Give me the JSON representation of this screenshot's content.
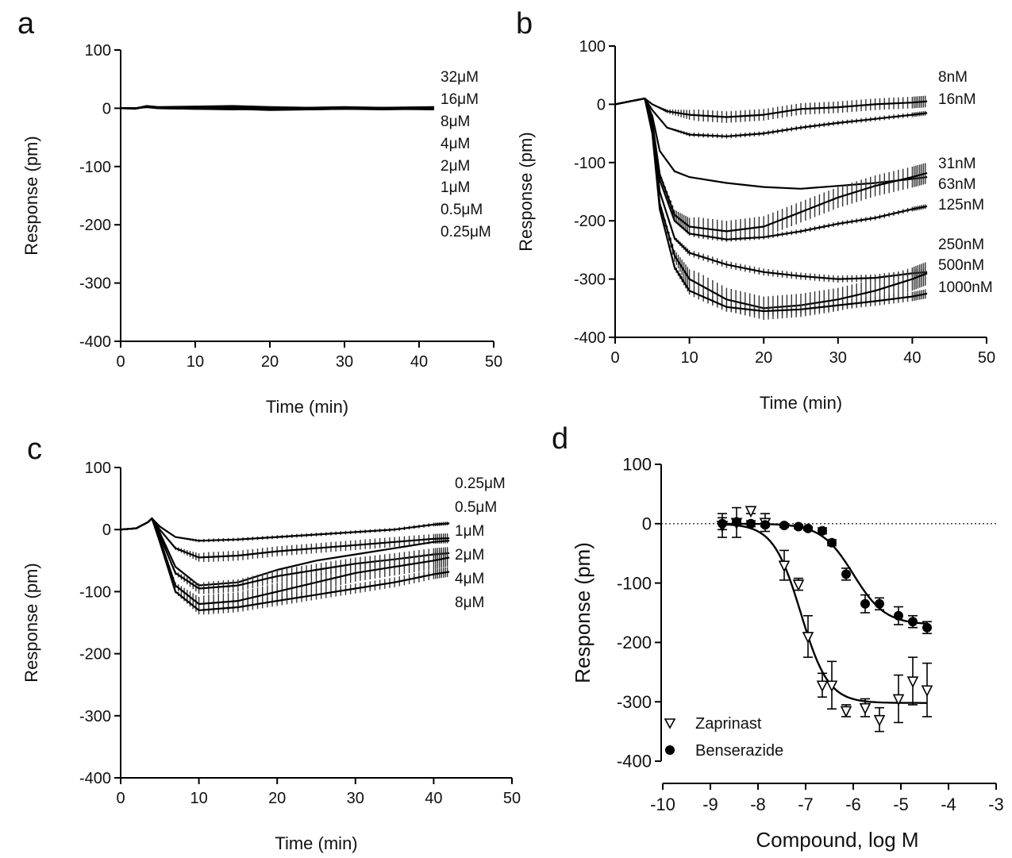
{
  "figure": {
    "panels": [
      {
        "letter": "a"
      },
      {
        "letter": "b"
      },
      {
        "letter": "c"
      },
      {
        "letter": "d"
      }
    ]
  },
  "chart_data": [
    {
      "panel": "a",
      "type": "line",
      "title": "",
      "xlabel": "Time (min)",
      "ylabel": "Response (pm)",
      "xlim": [
        0,
        50
      ],
      "ylim": [
        -400,
        100
      ],
      "xticks": [
        "0",
        "10",
        "20",
        "30",
        "40",
        "50"
      ],
      "yticks": [
        "100",
        "0",
        "-100",
        "-200",
        "-300",
        "-400"
      ],
      "grid": false,
      "legend_labels": [
        "32μM",
        "16μM",
        "8μM",
        "4μM",
        "2μM",
        "1μM",
        "0.5μM",
        "0.25μM"
      ],
      "series": [
        {
          "name": "32μM",
          "x": [
            0,
            2,
            3.5,
            5,
            10,
            15,
            20,
            25,
            30,
            35,
            42
          ],
          "y": [
            0,
            0,
            4,
            2,
            3,
            4,
            2,
            1,
            2,
            1,
            2
          ]
        },
        {
          "name": "16μM",
          "x": [
            0,
            2,
            3.5,
            5,
            10,
            15,
            20,
            25,
            30,
            35,
            42
          ],
          "y": [
            0,
            -1,
            3,
            1,
            1,
            3,
            1,
            0,
            1,
            0,
            0
          ]
        },
        {
          "name": "8μM",
          "x": [
            0,
            2,
            3.5,
            5,
            10,
            15,
            20,
            25,
            30,
            35,
            42
          ],
          "y": [
            0,
            0,
            2,
            0,
            -1,
            0,
            -2,
            -1,
            0,
            -1,
            -1
          ]
        },
        {
          "name": "4μM",
          "x": [
            0,
            2,
            3.5,
            5,
            10,
            15,
            20,
            25,
            30,
            35,
            42
          ],
          "y": [
            0,
            0,
            3,
            1,
            0,
            -1,
            -3,
            -2,
            -1,
            -2,
            -1
          ]
        },
        {
          "name": "2μM",
          "x": [
            0,
            2,
            3.5,
            5,
            10,
            15,
            20,
            25,
            30,
            35,
            42
          ],
          "y": [
            0,
            0,
            2,
            1,
            2,
            1,
            0,
            0,
            1,
            0,
            1
          ]
        },
        {
          "name": "1μM",
          "x": [
            0,
            2,
            3.5,
            5,
            10,
            15,
            20,
            25,
            30,
            35,
            42
          ],
          "y": [
            0,
            0,
            3,
            1,
            1,
            2,
            1,
            1,
            0,
            1,
            0
          ]
        },
        {
          "name": "0.5μM",
          "x": [
            0,
            2,
            3.5,
            5,
            10,
            15,
            20,
            25,
            30,
            35,
            42
          ],
          "y": [
            0,
            0,
            2,
            0,
            -1,
            -2,
            -1,
            -2,
            -1,
            -1,
            -2
          ]
        },
        {
          "name": "0.25μM",
          "x": [
            0,
            2,
            3.5,
            5,
            10,
            15,
            20,
            25,
            30,
            35,
            42
          ],
          "y": [
            0,
            0,
            3,
            1,
            0,
            0,
            -1,
            0,
            0,
            -1,
            0
          ]
        }
      ]
    },
    {
      "panel": "b",
      "type": "line",
      "title": "",
      "xlabel": "Time (min)",
      "ylabel": "Response (pm)",
      "xlim": [
        0,
        50
      ],
      "ylim": [
        -400,
        100
      ],
      "xticks": [
        "0",
        "10",
        "20",
        "30",
        "40",
        "50"
      ],
      "yticks": [
        "100",
        "0",
        "-100",
        "-200",
        "-300",
        "-400"
      ],
      "grid": false,
      "legend_labels": [
        "8nM",
        "16nM",
        "31nM",
        "63nM",
        "125nM",
        "250nM",
        "500nM",
        "1000nM"
      ],
      "series": [
        {
          "name": "8nM",
          "x": [
            0,
            2,
            4,
            5,
            7,
            10,
            15,
            20,
            25,
            30,
            35,
            40,
            42
          ],
          "y": [
            0,
            5,
            10,
            0,
            -12,
            -18,
            -22,
            -18,
            -8,
            -5,
            0,
            3,
            5
          ]
        },
        {
          "name": "16nM",
          "x": [
            0,
            2,
            4,
            5,
            7,
            10,
            15,
            20,
            25,
            30,
            35,
            40,
            42
          ],
          "y": [
            0,
            5,
            10,
            -10,
            -40,
            -52,
            -55,
            -50,
            -40,
            -32,
            -25,
            -18,
            -15
          ]
        },
        {
          "name": "31nM",
          "x": [
            0,
            2,
            4,
            5,
            6,
            8,
            10,
            15,
            20,
            25,
            30,
            35,
            40,
            42
          ],
          "y": [
            0,
            5,
            10,
            -20,
            -80,
            -115,
            -125,
            -135,
            -142,
            -145,
            -140,
            -135,
            -128,
            -125
          ]
        },
        {
          "name": "63nM",
          "x": [
            0,
            2,
            4,
            5,
            6,
            8,
            10,
            15,
            20,
            25,
            30,
            35,
            40,
            42
          ],
          "y": [
            0,
            5,
            10,
            -30,
            -120,
            -190,
            -210,
            -218,
            -210,
            -185,
            -160,
            -140,
            -125,
            -118
          ]
        },
        {
          "name": "125nM",
          "x": [
            0,
            2,
            4,
            5,
            6,
            8,
            10,
            15,
            20,
            25,
            30,
            35,
            40,
            42
          ],
          "y": [
            0,
            5,
            10,
            -30,
            -130,
            -200,
            -222,
            -232,
            -228,
            -218,
            -205,
            -195,
            -180,
            -175
          ]
        },
        {
          "name": "250nM",
          "x": [
            0,
            2,
            4,
            5,
            6,
            8,
            10,
            15,
            20,
            25,
            30,
            35,
            40,
            42
          ],
          "y": [
            0,
            5,
            10,
            -40,
            -150,
            -230,
            -255,
            -275,
            -288,
            -295,
            -300,
            -298,
            -290,
            -288
          ]
        },
        {
          "name": "500nM",
          "x": [
            0,
            2,
            4,
            5,
            6,
            8,
            10,
            15,
            20,
            25,
            30,
            35,
            40,
            42
          ],
          "y": [
            0,
            5,
            10,
            -45,
            -170,
            -260,
            -300,
            -335,
            -350,
            -345,
            -335,
            -320,
            -300,
            -290
          ]
        },
        {
          "name": "1000nM",
          "x": [
            0,
            2,
            4,
            5,
            6,
            8,
            10,
            15,
            20,
            25,
            30,
            35,
            40,
            42
          ],
          "y": [
            0,
            5,
            10,
            -50,
            -180,
            -280,
            -320,
            -348,
            -355,
            -352,
            -345,
            -338,
            -330,
            -325
          ]
        }
      ]
    },
    {
      "panel": "c",
      "type": "line",
      "title": "",
      "xlabel": "Time (min)",
      "ylabel": "Response (pm)",
      "xlim": [
        0,
        50
      ],
      "ylim": [
        -400,
        100
      ],
      "xticks": [
        "0",
        "10",
        "20",
        "30",
        "40",
        "50"
      ],
      "yticks": [
        "100",
        "0",
        "-100",
        "-200",
        "-300",
        "-400"
      ],
      "grid": false,
      "legend_labels": [
        "0.25μM",
        "0.5μM",
        "1μM",
        "2μM",
        "4μM",
        "8μM"
      ],
      "series": [
        {
          "name": "0.25μM",
          "x": [
            0,
            2,
            3.5,
            4,
            5,
            7,
            10,
            15,
            20,
            25,
            30,
            35,
            40,
            42
          ],
          "y": [
            0,
            2,
            12,
            18,
            5,
            -12,
            -18,
            -16,
            -12,
            -8,
            -4,
            0,
            8,
            10
          ]
        },
        {
          "name": "0.5μM",
          "x": [
            0,
            2,
            3.5,
            4,
            5,
            7,
            10,
            15,
            20,
            25,
            30,
            35,
            40,
            42
          ],
          "y": [
            0,
            2,
            12,
            18,
            0,
            -30,
            -45,
            -42,
            -35,
            -30,
            -25,
            -20,
            -15,
            -14
          ]
        },
        {
          "name": "1μM",
          "x": [
            0,
            2,
            3.5,
            4,
            5,
            7,
            10,
            15,
            20,
            25,
            30,
            35,
            40,
            42
          ],
          "y": [
            0,
            2,
            12,
            18,
            -5,
            -60,
            -90,
            -85,
            -65,
            -50,
            -40,
            -30,
            -20,
            -18
          ]
        },
        {
          "name": "2μM",
          "x": [
            0,
            2,
            3.5,
            4,
            5,
            7,
            10,
            15,
            20,
            25,
            30,
            35,
            40,
            42
          ],
          "y": [
            0,
            2,
            12,
            18,
            -10,
            -70,
            -95,
            -90,
            -75,
            -65,
            -55,
            -48,
            -40,
            -38
          ]
        },
        {
          "name": "4μM",
          "x": [
            0,
            2,
            3.5,
            4,
            5,
            7,
            10,
            15,
            20,
            25,
            30,
            35,
            40,
            42
          ],
          "y": [
            0,
            2,
            12,
            18,
            -15,
            -90,
            -120,
            -115,
            -100,
            -85,
            -70,
            -60,
            -50,
            -45
          ]
        },
        {
          "name": "8μM",
          "x": [
            0,
            2,
            3.5,
            4,
            5,
            7,
            10,
            15,
            20,
            25,
            30,
            35,
            40,
            42
          ],
          "y": [
            0,
            2,
            12,
            18,
            -20,
            -100,
            -130,
            -125,
            -115,
            -105,
            -95,
            -85,
            -72,
            -68
          ]
        }
      ]
    },
    {
      "panel": "d",
      "type": "scatter",
      "title": "",
      "xlabel": "Compound, log M",
      "ylabel": "Response (pm)",
      "xlim": [
        -10,
        -3
      ],
      "ylim": [
        -400,
        100
      ],
      "xticks": [
        "-10",
        "-9",
        "-8",
        "-7",
        "-6",
        "-5",
        "-4",
        "-3"
      ],
      "yticks": [
        "100",
        "0",
        "-100",
        "-200",
        "-300",
        "-400"
      ],
      "grid": false,
      "legend": "bottom-left",
      "series": [
        {
          "name": "Zaprinast",
          "marker": "open-triangle-down",
          "x": [
            -8.75,
            -8.45,
            -8.15,
            -7.85,
            -7.45,
            -7.15,
            -6.95,
            -6.65,
            -6.45,
            -6.15,
            -5.75,
            -5.45,
            -5.05,
            -4.75,
            -4.45
          ],
          "y": [
            -3,
            2,
            22,
            2,
            -70,
            -102,
            -190,
            -272,
            -272,
            -315,
            -310,
            -330,
            -295,
            -265,
            -280
          ],
          "err": [
            20,
            25,
            5,
            15,
            25,
            10,
            35,
            20,
            40,
            10,
            15,
            20,
            40,
            40,
            45
          ],
          "fit": {
            "bottom": -302,
            "top": 0,
            "logEC50": -7.1,
            "hill": 1.5
          }
        },
        {
          "name": "Benserazide",
          "marker": "filled-circle",
          "x": [
            -8.75,
            -8.45,
            -8.15,
            -7.85,
            -7.45,
            -7.15,
            -6.95,
            -6.65,
            -6.45,
            -6.15,
            -5.75,
            -5.45,
            -5.05,
            -4.75,
            -4.45
          ],
          "y": [
            0,
            3,
            0,
            -2,
            -3,
            -5,
            -8,
            -12,
            -32,
            -85,
            -135,
            -135,
            -155,
            -165,
            -175
          ],
          "err": [
            10,
            5,
            5,
            3,
            3,
            3,
            3,
            5,
            5,
            10,
            15,
            10,
            15,
            10,
            10
          ],
          "fit": {
            "bottom": -170,
            "top": 0,
            "logEC50": -6.0,
            "hill": 1.3
          }
        }
      ]
    }
  ]
}
